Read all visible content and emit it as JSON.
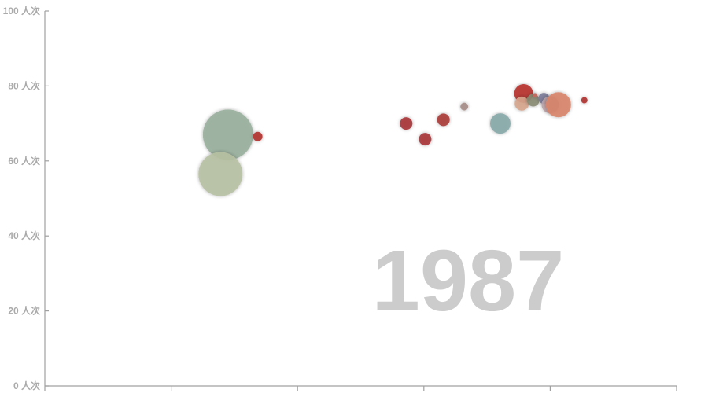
{
  "chart_data": {
    "type": "scatter",
    "year_label": "1987",
    "ylim": [
      0,
      100
    ],
    "y_ticks": [
      0,
      20,
      40,
      60,
      80,
      100
    ],
    "y_unit_suffix": " 人次",
    "xlim": [
      0,
      100
    ],
    "x_ticks": [
      0,
      20,
      40,
      60,
      80,
      100
    ],
    "grid": false,
    "points": [
      {
        "x": 29,
        "y": 67,
        "r": 32,
        "color": "#99af9c"
      },
      {
        "x": 27.8,
        "y": 56.5,
        "r": 28,
        "color": "#b7c1a3"
      },
      {
        "x": 33.7,
        "y": 66.5,
        "r": 6,
        "color": "#b0312f"
      },
      {
        "x": 57.2,
        "y": 70,
        "r": 8,
        "color": "#a93436"
      },
      {
        "x": 60.2,
        "y": 65.8,
        "r": 8,
        "color": "#a93436"
      },
      {
        "x": 63.1,
        "y": 71,
        "r": 8,
        "color": "#aa3a38"
      },
      {
        "x": 66.4,
        "y": 74.5,
        "r": 5,
        "color": "#a58c87"
      },
      {
        "x": 72.1,
        "y": 70,
        "r": 13,
        "color": "#87a8a8"
      },
      {
        "x": 75.8,
        "y": 78,
        "r": 12,
        "color": "#b8312b"
      },
      {
        "x": 75.5,
        "y": 75.3,
        "r": 9,
        "color": "#d6a58d"
      },
      {
        "x": 77.3,
        "y": 76.2,
        "r": 8,
        "color": "#8a8c74"
      },
      {
        "x": 77.6,
        "y": 77.5,
        "r": 3,
        "color": "#c46a60"
      },
      {
        "x": 79,
        "y": 76.7,
        "r": 7,
        "color": "#7a7a98"
      },
      {
        "x": 80,
        "y": 75,
        "r": 11,
        "color": "#bba1a6"
      },
      {
        "x": 81.3,
        "y": 75,
        "r": 16,
        "color": "#d9856b"
      },
      {
        "x": 85.4,
        "y": 76.2,
        "r": 4,
        "color": "#b0312f"
      }
    ]
  }
}
